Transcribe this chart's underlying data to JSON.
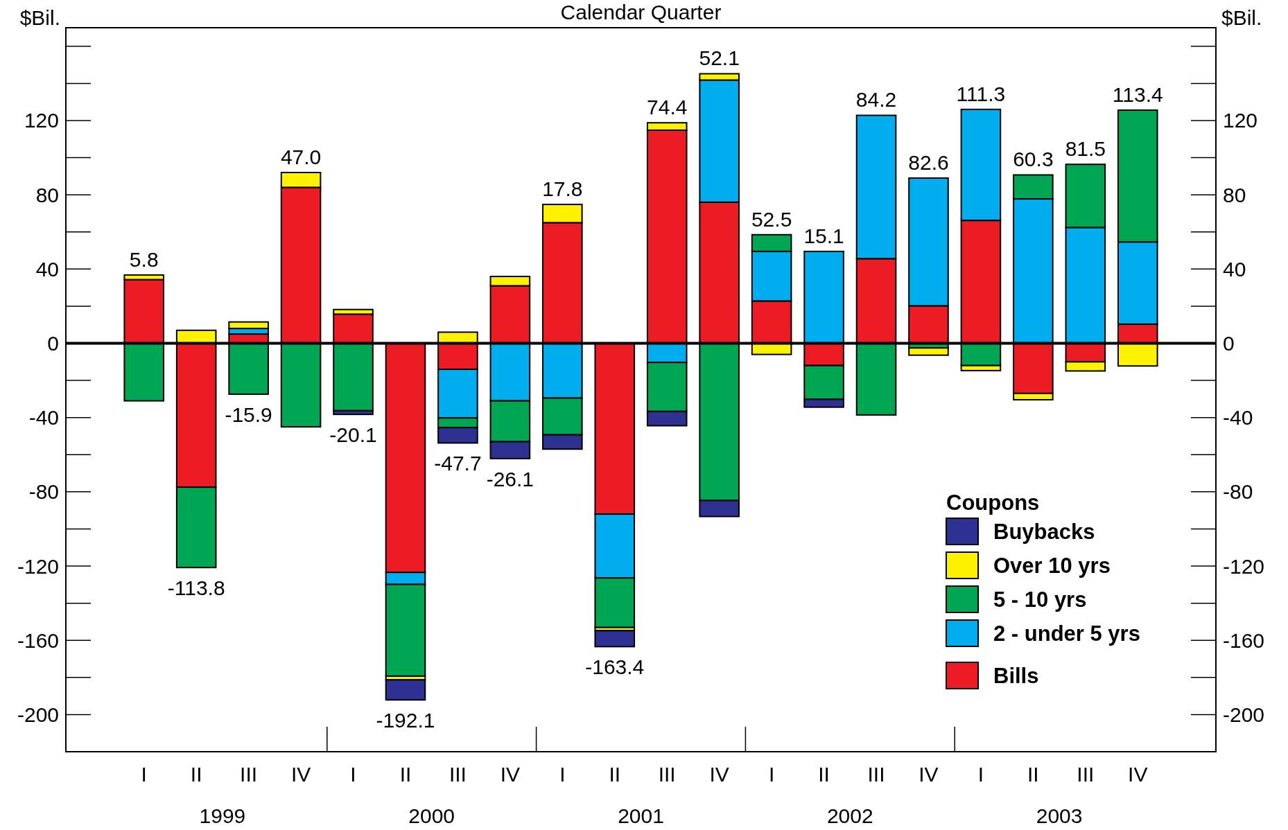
{
  "chart_data": {
    "type": "bar",
    "stacked": true,
    "title": "Calendar Quarter",
    "ylabel": "$Bil.",
    "y2label": "$Bil.",
    "legend_title": "Coupons",
    "legend": "bottom right",
    "categories": [
      "I",
      "II",
      "III",
      "IV",
      "I",
      "II",
      "III",
      "IV",
      "I",
      "II",
      "III",
      "IV",
      "I",
      "II",
      "III",
      "IV",
      "I",
      "II",
      "III",
      "IV"
    ],
    "annotations": [
      "1999",
      "2000",
      "2001",
      "2002",
      "2003"
    ],
    "ylim": [
      -220,
      170
    ],
    "yticks": [
      -200,
      -160,
      -120,
      -80,
      -40,
      0,
      40,
      80,
      120
    ],
    "y2lim": [
      -220,
      170
    ],
    "y2ticks": [
      -200,
      -160,
      -120,
      -80,
      -40,
      0,
      40,
      80,
      120
    ],
    "totals": [
      "5.8",
      "-113.8",
      "-15.9",
      "47.0",
      "-20.1",
      "-192.1",
      "-47.7",
      "-26.1",
      "17.8",
      "-163.4",
      "74.4",
      "52.1",
      "52.5",
      "15.1",
      "84.2",
      "82.6",
      "111.3",
      "60.3",
      "81.5",
      "113.4"
    ],
    "series": [
      {
        "name": "Bills",
        "color": "#ed1c24",
        "values": [
          34.3,
          -77.5,
          5,
          84,
          15.7,
          -123.4,
          -14,
          31,
          65,
          -92,
          114.8,
          76,
          22.8,
          -12,
          45.6,
          20.2,
          66.2,
          -27,
          -10,
          10.3
        ]
      },
      {
        "name": "2 - under 5 yrs",
        "color": "#00aeef",
        "values": [
          null,
          null,
          3,
          null,
          null,
          -6.5,
          -26.2,
          -31,
          -29.5,
          -34.4,
          -10.3,
          65.8,
          26.7,
          49.5,
          77.2,
          68.8,
          59.8,
          77.8,
          62.4,
          44.3
        ]
      },
      {
        "name": "5 - 10 yrs",
        "color": "#00a651",
        "values": [
          -31,
          -43.3,
          -27.4,
          -45,
          -36.3,
          -49.4,
          -5.2,
          -22,
          -19.8,
          -26.7,
          -26.4,
          -84.7,
          9,
          -18.2,
          -38.6,
          -2.5,
          -12,
          12.9,
          34,
          71
        ]
      },
      {
        "name": "Over 10 yrs",
        "color": "#fff200",
        "values": [
          2.5,
          7,
          3.5,
          8,
          2.5,
          -2,
          6,
          5,
          9.8,
          -1.7,
          4,
          3.4,
          -6,
          null,
          null,
          -3.9,
          -2.7,
          -3.4,
          -4.9,
          -12.2
        ]
      },
      {
        "name": "Buybacks",
        "color": "#2e3192",
        "values": [
          null,
          null,
          null,
          null,
          -2,
          -10.8,
          -8.3,
          -9.1,
          -7.7,
          -8.6,
          -7.7,
          -8.6,
          null,
          -4.2,
          null,
          null,
          null,
          null,
          null,
          null
        ]
      }
    ]
  }
}
